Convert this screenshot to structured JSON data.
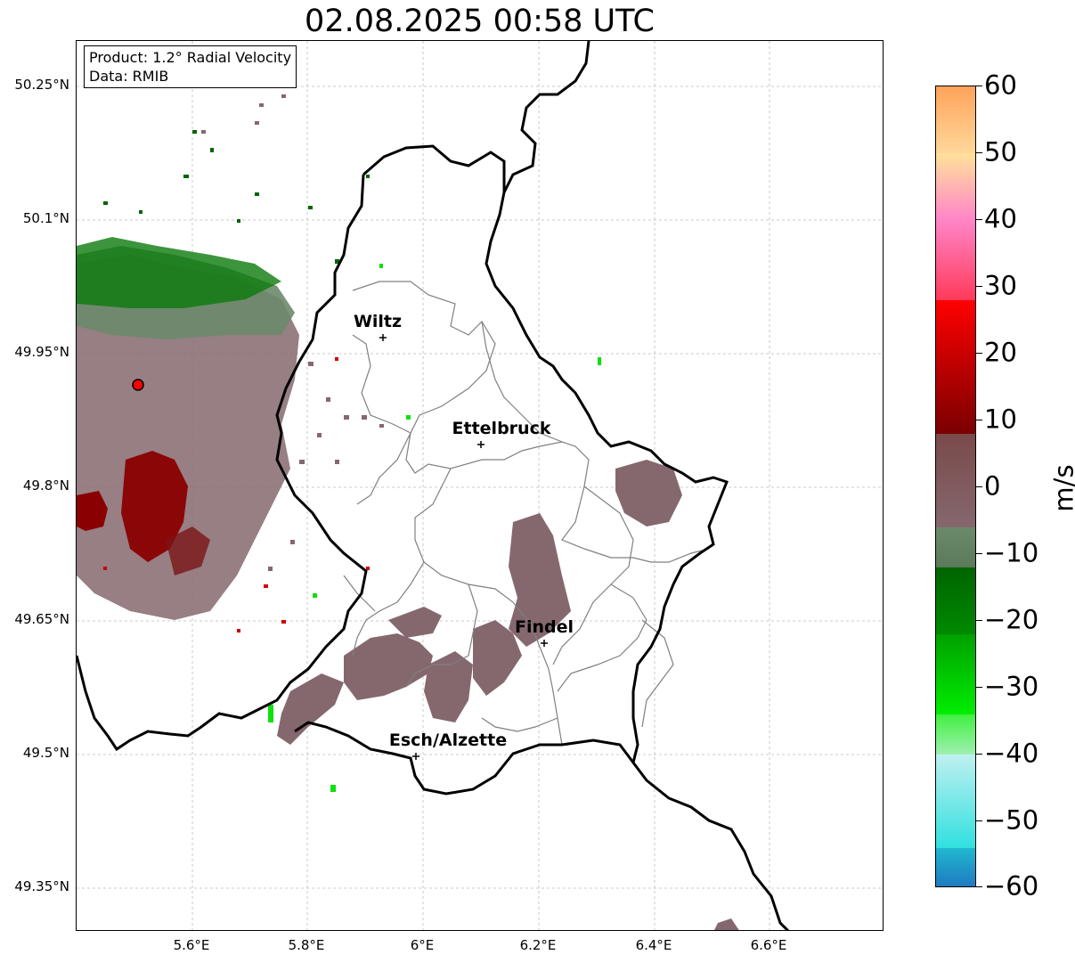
{
  "title": "02.08.2025 00:58 UTC",
  "info": {
    "product": "Product: 1.2° Radial Velocity",
    "data": "Data: RMIB"
  },
  "map": {
    "lat_ticks": [
      "50.25°N",
      "50.1°N",
      "49.95°N",
      "49.8°N",
      "49.65°N",
      "49.5°N",
      "49.35°N"
    ],
    "lon_ticks": [
      "5.6°E",
      "5.8°E",
      "6°E",
      "6.2°E",
      "6.4°E",
      "6.6°E"
    ],
    "cities": [
      {
        "name": "Wiltz"
      },
      {
        "name": "Ettelbruck"
      },
      {
        "name": "Findel"
      },
      {
        "name": "Esch/Alzette"
      }
    ]
  },
  "colorbar": {
    "unit": "m/s",
    "ticks": [
      "60",
      "50",
      "40",
      "30",
      "20",
      "10",
      "0",
      "−10",
      "−20",
      "−30",
      "−40",
      "−50",
      "−60"
    ],
    "colors": {
      "high_orange": "#ffa35a",
      "pink": "#ff85c8",
      "red": "#ff0000",
      "dark_red": "#7a0000",
      "gray_mauve": "#85686e",
      "gray_green": "#6b8a6b",
      "dark_green": "#006400",
      "bright_green": "#00e600",
      "cyan": "#30e0e0",
      "blue": "#1f78c0"
    }
  }
}
